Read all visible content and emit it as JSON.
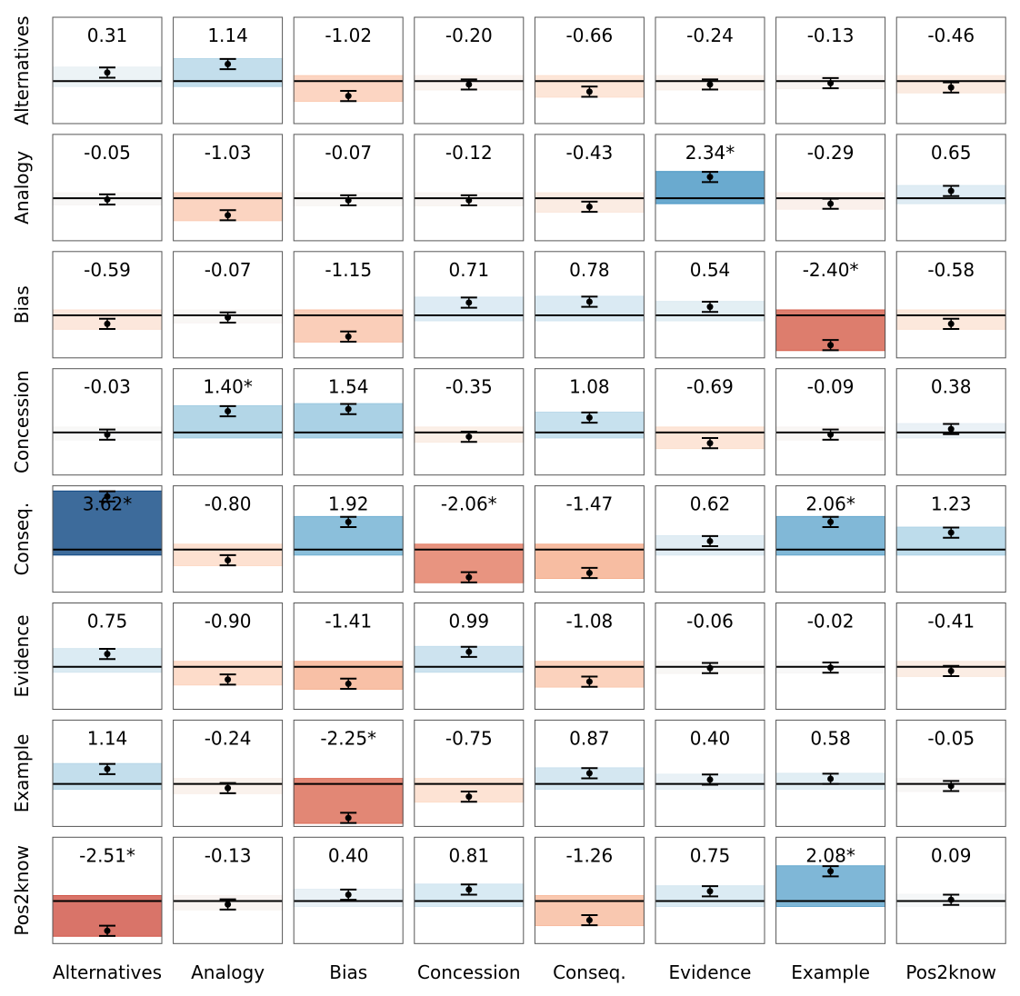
{
  "chart_data": {
    "type": "heatmap",
    "subtype": "matrix-of-effect-plots",
    "rows": [
      "Alternatives",
      "Analogy",
      "Bias",
      "Concession",
      "Conseq.",
      "Evidence",
      "Example",
      "Pos2know"
    ],
    "cols": [
      "Alternatives",
      "Analogy",
      "Bias",
      "Concession",
      "Conseq.",
      "Evidence",
      "Example",
      "Pos2know"
    ],
    "labels": [
      [
        "0.31",
        "1.14",
        "-1.02",
        "-0.20",
        "-0.66",
        "-0.24",
        "-0.13",
        "-0.46"
      ],
      [
        "-0.05",
        "-1.03",
        "-0.07",
        "-0.12",
        "-0.43",
        "2.34*",
        "-0.29",
        "0.65"
      ],
      [
        "-0.59",
        "-0.07",
        "-1.15",
        "0.71",
        "0.78",
        "0.54",
        "-2.40*",
        "-0.58"
      ],
      [
        "-0.03",
        "1.40*",
        "1.54",
        "-0.35",
        "1.08",
        "-0.69",
        "-0.09",
        "0.38"
      ],
      [
        "3.62*",
        "-0.80",
        "1.92",
        "-2.06*",
        "-1.47",
        "0.62",
        "2.06*",
        "1.23"
      ],
      [
        "0.75",
        "-0.90",
        "-1.41",
        "0.99",
        "-1.08",
        "-0.06",
        "-0.02",
        "-0.41"
      ],
      [
        "1.14",
        "-0.24",
        "-2.25*",
        "-0.75",
        "0.87",
        "0.40",
        "0.58",
        "-0.05"
      ],
      [
        "-2.51*",
        "-0.13",
        "0.40",
        "0.81",
        "-1.26",
        "0.75",
        "2.08*",
        "0.09"
      ]
    ],
    "values": [
      [
        0.31,
        1.14,
        -1.02,
        -0.2,
        -0.66,
        -0.24,
        -0.13,
        -0.46
      ],
      [
        -0.05,
        -1.03,
        -0.07,
        -0.12,
        -0.43,
        2.34,
        -0.29,
        0.65
      ],
      [
        -0.59,
        -0.07,
        -1.15,
        0.71,
        0.78,
        0.54,
        -2.4,
        -0.58
      ],
      [
        -0.03,
        1.4,
        1.54,
        -0.35,
        1.08,
        -0.69,
        -0.09,
        0.38
      ],
      [
        3.62,
        -0.8,
        1.92,
        -2.06,
        -1.47,
        0.62,
        2.06,
        1.23
      ],
      [
        0.75,
        -0.9,
        -1.41,
        0.99,
        -1.08,
        -0.06,
        -0.02,
        -0.41
      ],
      [
        1.14,
        -0.24,
        -2.25,
        -0.75,
        0.87,
        0.4,
        0.58,
        -0.05
      ],
      [
        -2.51,
        -0.13,
        0.4,
        0.81,
        -1.26,
        0.75,
        2.08,
        0.09
      ]
    ],
    "point_estimates": [
      [
        0.02,
        0.04,
        -0.035,
        -0.008,
        -0.025,
        -0.008,
        -0.005,
        -0.015
      ],
      [
        -0.003,
        -0.04,
        -0.005,
        -0.005,
        -0.02,
        0.05,
        -0.013,
        0.017
      ],
      [
        -0.02,
        -0.005,
        -0.05,
        0.03,
        0.032,
        0.02,
        -0.07,
        -0.02
      ],
      [
        -0.005,
        0.05,
        0.055,
        -0.01,
        0.035,
        -0.025,
        -0.005,
        0.008
      ],
      [
        0.125,
        -0.025,
        0.065,
        -0.065,
        -0.055,
        0.02,
        0.065,
        0.04
      ],
      [
        0.03,
        -0.03,
        -0.04,
        0.035,
        -0.035,
        -0.003,
        -0.002,
        -0.01
      ],
      [
        0.035,
        -0.01,
        -0.08,
        -0.03,
        0.025,
        0.01,
        0.012,
        -0.005
      ],
      [
        -0.07,
        -0.008,
        0.015,
        0.027,
        -0.045,
        0.023,
        0.07,
        0.003
      ]
    ],
    "error_half_width": 0.012,
    "color_scale": "RdBu diverging, centered at 0",
    "color_range": [
      -4,
      4
    ],
    "cell_ylim": [
      -0.1,
      0.15
    ],
    "reference_line": 0,
    "significance_marker": "*"
  }
}
